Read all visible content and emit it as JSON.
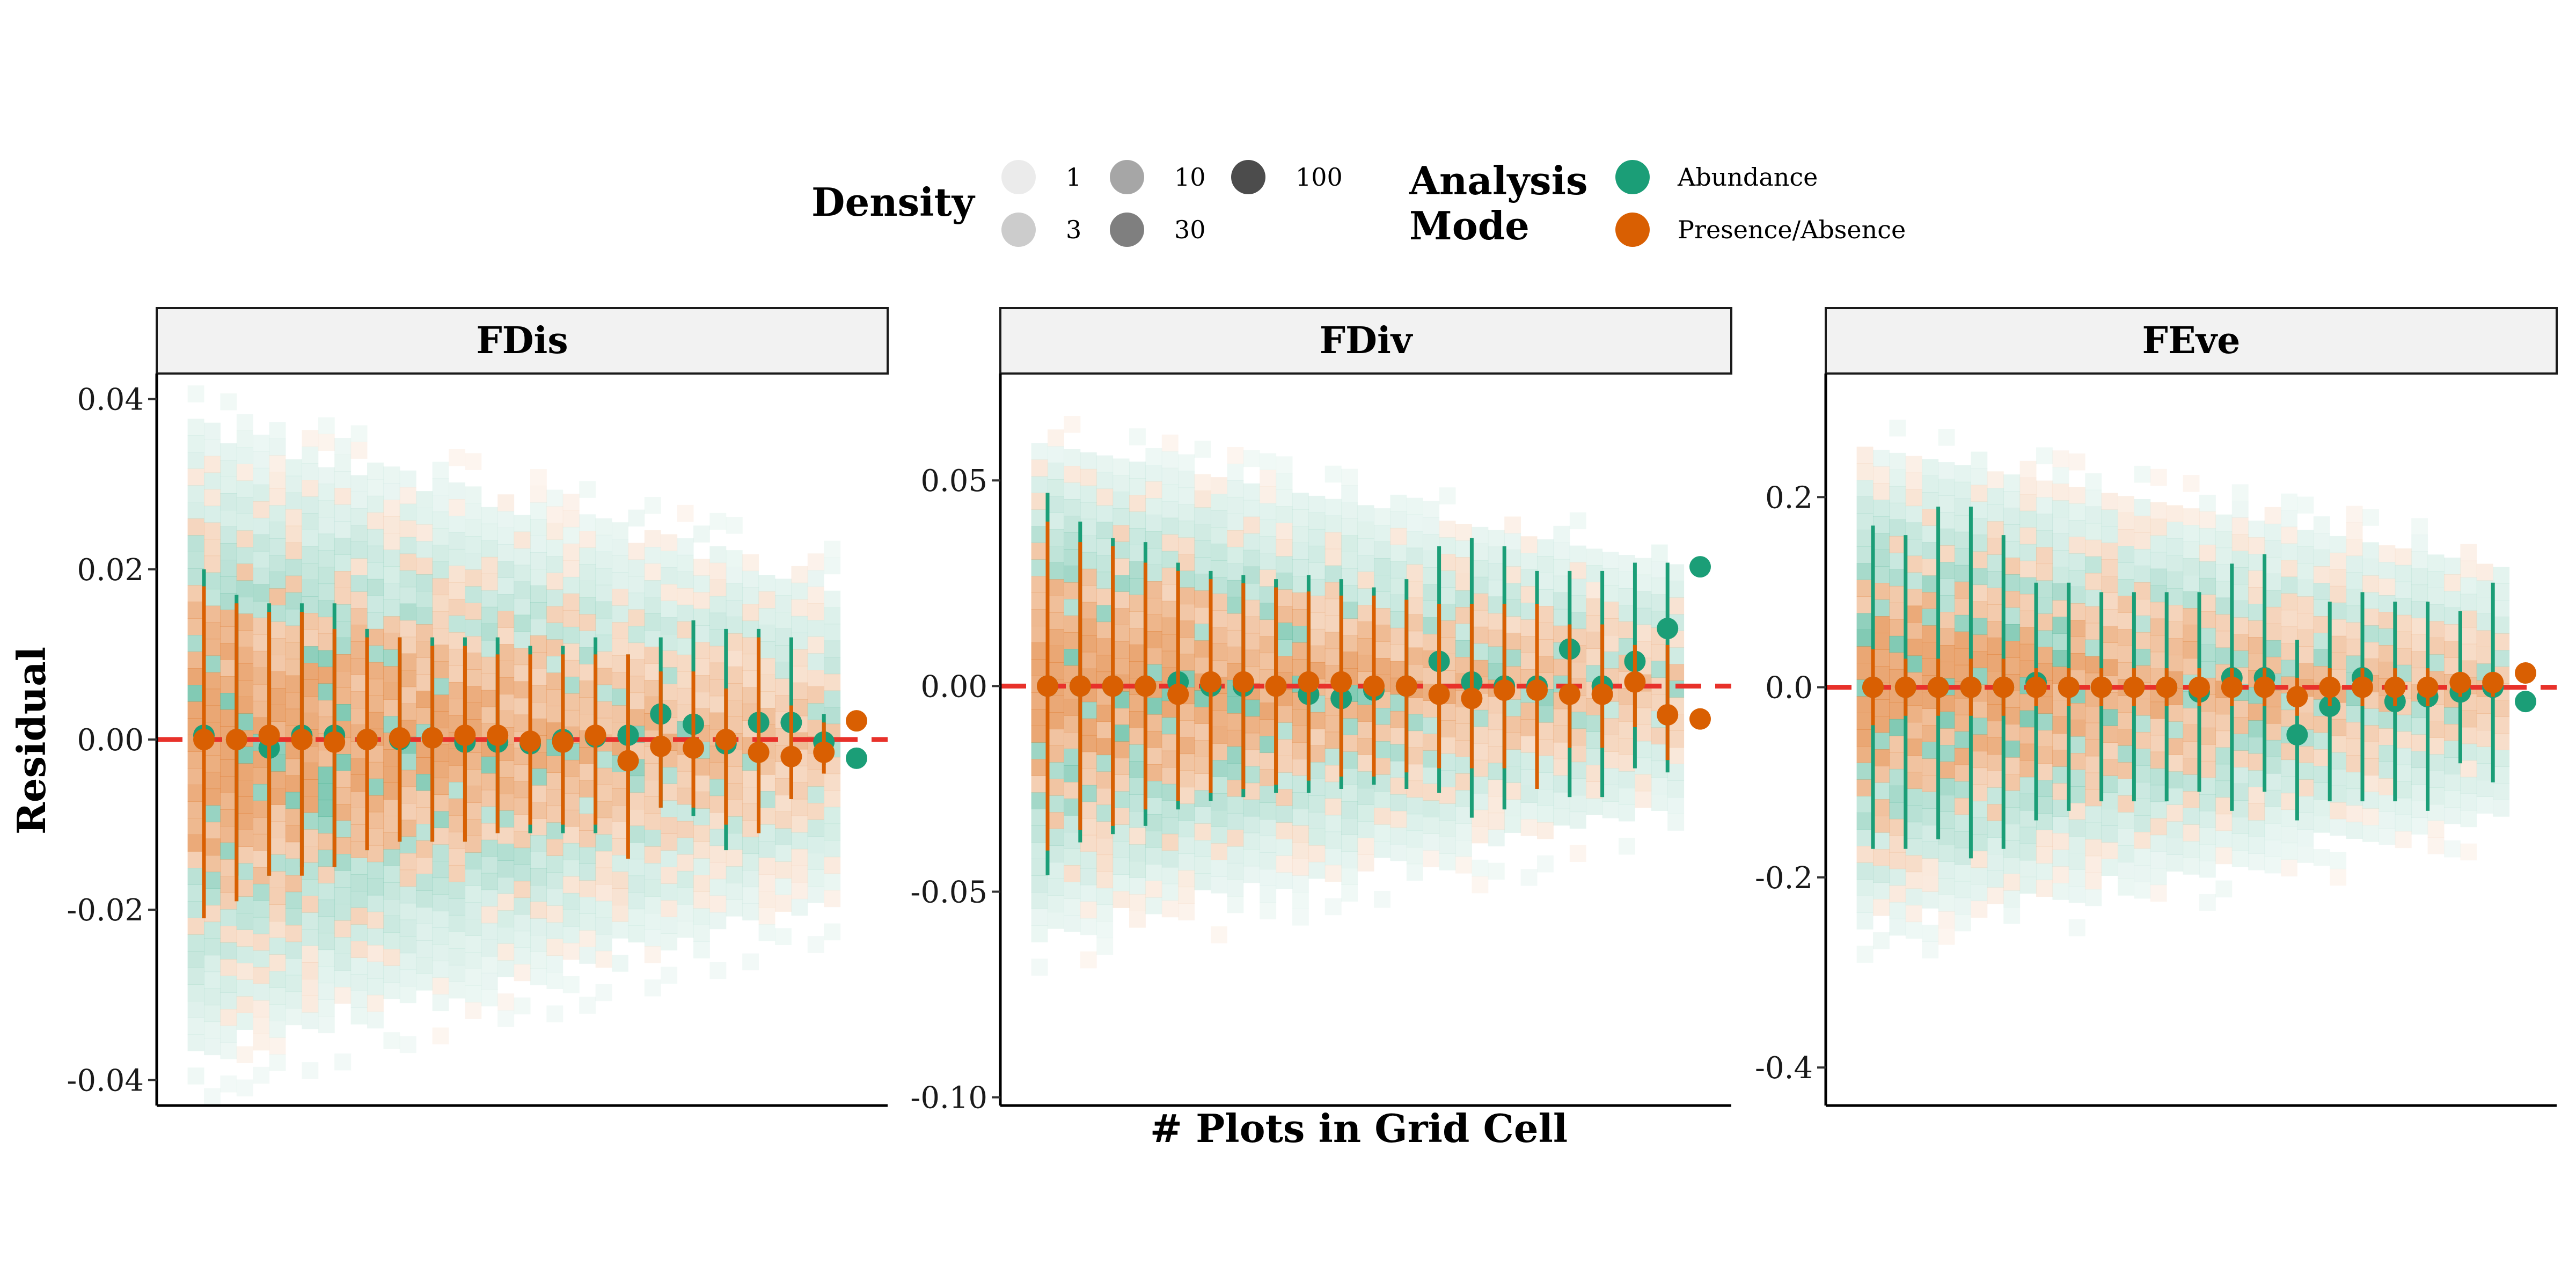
{
  "chart_data": {
    "type": "scatter",
    "xlabel": "# Plots in Grid Cell",
    "ylabel": "Residual",
    "x_positions": [
      1,
      2,
      3,
      4,
      5,
      6,
      7,
      8,
      9,
      10,
      11,
      12,
      13,
      14,
      15,
      16,
      17,
      18,
      19,
      20,
      21
    ],
    "reference_line": {
      "y": 0,
      "color": "#e8312a",
      "style": "dashed"
    },
    "legend": {
      "density": {
        "title": "Density",
        "levels": [
          "1",
          "3",
          "10",
          "30",
          "100"
        ]
      },
      "mode": {
        "title_lines": [
          "Analysis",
          "Mode"
        ],
        "entries": [
          {
            "label": "Abundance",
            "color": "#1b9e77"
          },
          {
            "label": "Presence/Absence",
            "color": "#d95f02"
          }
        ]
      }
    },
    "panels": [
      {
        "title": "FDis",
        "ylim": [
          -0.043,
          0.043
        ],
        "yticks": [
          0.04,
          0.02,
          0.0,
          -0.02,
          -0.04
        ],
        "ytick_labels": [
          "0.04",
          "0.02",
          "0.00",
          "-0.02",
          "-0.04"
        ],
        "density_spread": 0.026,
        "series": [
          {
            "name": "Abundance",
            "values": [
              0.0005,
              0.0,
              -0.001,
              0.0005,
              0.0005,
              0.0,
              0.0,
              0.0002,
              -0.0003,
              -0.0003,
              -0.0005,
              0.0,
              0.0003,
              0.0005,
              0.003,
              0.0018,
              -0.0005,
              0.002,
              0.002,
              -0.0003,
              -0.0022
            ],
            "low": [
              -0.019,
              -0.016,
              -0.016,
              -0.015,
              -0.015,
              -0.013,
              -0.012,
              -0.012,
              -0.012,
              -0.011,
              -0.011,
              -0.011,
              -0.011,
              -0.01,
              -0.008,
              -0.009,
              -0.013,
              -0.008,
              -0.007,
              -0.003,
              null
            ],
            "high": [
              0.02,
              0.017,
              0.016,
              0.016,
              0.016,
              0.013,
              0.012,
              0.012,
              0.012,
              0.012,
              0.011,
              0.011,
              0.012,
              0.01,
              0.012,
              0.014,
              0.013,
              0.013,
              0.012,
              0.003,
              null
            ]
          },
          {
            "name": "Presence/Absence",
            "values": [
              0.0,
              0.0,
              0.0005,
              0.0,
              -0.0003,
              0.0,
              0.0002,
              0.0002,
              0.0005,
              0.0005,
              -0.0002,
              -0.0003,
              0.0005,
              -0.0025,
              -0.0008,
              -0.001,
              0.0,
              -0.0015,
              -0.002,
              -0.0015,
              0.0022
            ],
            "low": [
              -0.021,
              -0.019,
              -0.016,
              -0.016,
              -0.015,
              -0.013,
              -0.012,
              -0.012,
              -0.012,
              -0.011,
              -0.01,
              -0.01,
              -0.01,
              -0.014,
              -0.008,
              -0.008,
              -0.01,
              -0.011,
              -0.007,
              -0.004,
              null
            ],
            "high": [
              0.018,
              0.016,
              0.015,
              0.015,
              0.013,
              0.012,
              0.012,
              0.011,
              0.011,
              0.01,
              0.01,
              0.01,
              0.01,
              0.01,
              0.008,
              0.008,
              0.006,
              0.012,
              0.004,
              0.002,
              null
            ]
          }
        ]
      },
      {
        "title": "FDiv",
        "ylim": [
          -0.102,
          0.076
        ],
        "yticks": [
          0.05,
          0.0,
          -0.05,
          -0.1
        ],
        "ytick_labels": [
          "0.05",
          "0.00",
          "-0.05",
          "-0.10"
        ],
        "density_spread": 0.042,
        "series": [
          {
            "name": "Abundance",
            "values": [
              0.0,
              0.0,
              0.0,
              0.0,
              0.001,
              0.0,
              0.0,
              0.0,
              -0.002,
              -0.003,
              -0.001,
              0.0,
              0.006,
              0.001,
              0.0,
              0.0,
              0.009,
              0.0,
              0.006,
              0.014,
              0.029
            ],
            "low": [
              -0.046,
              -0.038,
              -0.036,
              -0.034,
              -0.03,
              -0.028,
              -0.027,
              -0.026,
              -0.026,
              -0.025,
              -0.024,
              -0.025,
              -0.026,
              -0.032,
              -0.03,
              -0.025,
              -0.027,
              -0.027,
              -0.02,
              -0.021,
              null
            ],
            "high": [
              0.047,
              0.04,
              0.036,
              0.035,
              0.03,
              0.028,
              0.027,
              0.026,
              0.027,
              0.026,
              0.024,
              0.026,
              0.034,
              0.036,
              0.034,
              0.028,
              0.028,
              0.028,
              0.03,
              0.03,
              null
            ]
          },
          {
            "name": "Presence/Absence",
            "values": [
              0.0,
              0.0,
              0.0,
              0.0,
              -0.002,
              0.001,
              0.001,
              0.0,
              0.001,
              0.001,
              0.0,
              0.0,
              -0.002,
              -0.003,
              -0.001,
              -0.001,
              -0.002,
              -0.002,
              0.001,
              -0.007,
              -0.008
            ],
            "low": [
              -0.04,
              -0.035,
              -0.034,
              -0.03,
              -0.028,
              -0.026,
              -0.025,
              -0.024,
              -0.023,
              -0.022,
              -0.022,
              -0.021,
              -0.02,
              -0.02,
              -0.02,
              -0.025,
              -0.015,
              -0.015,
              -0.01,
              -0.018,
              null
            ],
            "high": [
              0.04,
              0.035,
              0.034,
              0.03,
              0.028,
              0.026,
              0.025,
              0.024,
              0.023,
              0.022,
              0.022,
              0.021,
              0.02,
              0.02,
              0.02,
              0.02,
              0.015,
              0.015,
              0.01,
              0.01,
              null
            ]
          }
        ]
      },
      {
        "title": "FEve",
        "ylim": [
          -0.44,
          0.33
        ],
        "yticks": [
          0.2,
          0.0,
          -0.2,
          -0.4
        ],
        "ytick_labels": [
          "0.2",
          "0.0",
          "-0.2",
          "-0.4"
        ],
        "density_spread": 0.18,
        "series": [
          {
            "name": "Abundance",
            "values": [
              0.0,
              0.0,
              0.0,
              0.0,
              0.0,
              0.005,
              0.0,
              0.0,
              0.0,
              0.0,
              -0.005,
              0.01,
              0.01,
              -0.05,
              -0.02,
              0.01,
              -0.015,
              -0.01,
              -0.005,
              0.0,
              -0.015
            ],
            "low": [
              -0.17,
              -0.17,
              -0.16,
              -0.18,
              -0.17,
              -0.14,
              -0.13,
              -0.12,
              -0.12,
              -0.12,
              -0.11,
              -0.13,
              -0.11,
              -0.14,
              -0.12,
              -0.12,
              -0.12,
              -0.13,
              -0.08,
              -0.1,
              null
            ],
            "high": [
              0.17,
              0.16,
              0.19,
              0.19,
              0.16,
              0.11,
              0.11,
              0.1,
              0.1,
              0.1,
              0.1,
              0.13,
              0.14,
              0.05,
              0.09,
              0.1,
              0.09,
              0.09,
              0.08,
              0.11,
              null
            ]
          },
          {
            "name": "Presence/Absence",
            "values": [
              0.0,
              0.0,
              0.0,
              0.0,
              0.0,
              0.0,
              0.0,
              0.0,
              0.0,
              0.0,
              0.0,
              0.0,
              0.0,
              -0.01,
              0.0,
              0.0,
              0.0,
              0.0,
              0.005,
              0.005,
              0.015
            ],
            "low": [
              -0.04,
              -0.03,
              -0.03,
              -0.03,
              -0.03,
              -0.02,
              -0.02,
              -0.02,
              -0.02,
              -0.02,
              -0.02,
              -0.02,
              -0.02,
              -0.03,
              -0.02,
              -0.02,
              -0.02,
              -0.02,
              -0.01,
              -0.01,
              null
            ],
            "high": [
              0.04,
              0.03,
              0.03,
              0.03,
              0.03,
              0.02,
              0.02,
              0.02,
              0.02,
              0.02,
              0.02,
              0.02,
              0.02,
              0.01,
              0.02,
              0.02,
              0.02,
              0.02,
              0.01,
              0.01,
              null
            ]
          }
        ]
      }
    ]
  }
}
